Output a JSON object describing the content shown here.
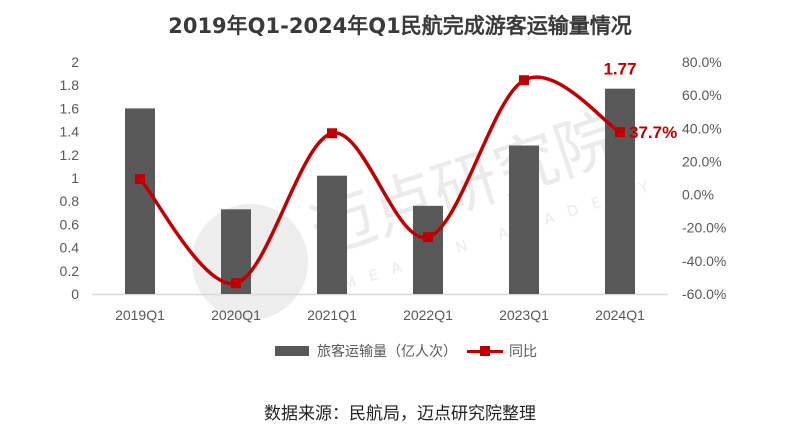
{
  "title": "2019年Q1-2024年Q1民航完成游客运输量情况",
  "source": "数据来源：民航局，迈点研究院整理",
  "watermark": {
    "text": "迈点研究院",
    "subtext": "MEADIN ACADEMY"
  },
  "legend": {
    "bar_label": "旅客运输量（亿人次）",
    "line_label": "同比"
  },
  "colors": {
    "bar": "#595959",
    "line": "#c00000",
    "axis": "#d9d9d9",
    "text": "#595959"
  },
  "annotations": {
    "last_bar_value": "1.77",
    "last_line_value": "37.7%"
  },
  "chart_data": {
    "type": "bar+line",
    "title": "2019年Q1-2024年Q1民航完成游客运输量情况",
    "categories": [
      "2019Q1",
      "2020Q1",
      "2021Q1",
      "2022Q1",
      "2023Q1",
      "2024Q1"
    ],
    "series": [
      {
        "name": "旅客运输量（亿人次）",
        "type": "bar",
        "axis": "left",
        "values": [
          1.6,
          0.73,
          1.02,
          0.76,
          1.28,
          1.77
        ]
      },
      {
        "name": "同比",
        "type": "line",
        "axis": "right",
        "values": [
          9.4,
          -53.5,
          37.0,
          -25.7,
          69.0,
          37.7
        ],
        "unit": "%"
      }
    ],
    "left_axis": {
      "ylim": [
        0,
        2
      ],
      "ticks": [
        "0",
        "0.2",
        "0.4",
        "0.6",
        "0.8",
        "1",
        "1.2",
        "1.4",
        "1.6",
        "1.8",
        "2"
      ]
    },
    "right_axis": {
      "ylim": [
        -60,
        80
      ],
      "ticks": [
        "-60.0%",
        "-40.0%",
        "-20.0%",
        "0.0%",
        "20.0%",
        "40.0%",
        "60.0%",
        "80.0%"
      ]
    },
    "data_labels": [
      {
        "category": "2024Q1",
        "series": "bar",
        "text": "1.77"
      },
      {
        "category": "2024Q1",
        "series": "line",
        "text": "37.7%"
      }
    ],
    "grid": false,
    "legend_position": "bottom"
  }
}
